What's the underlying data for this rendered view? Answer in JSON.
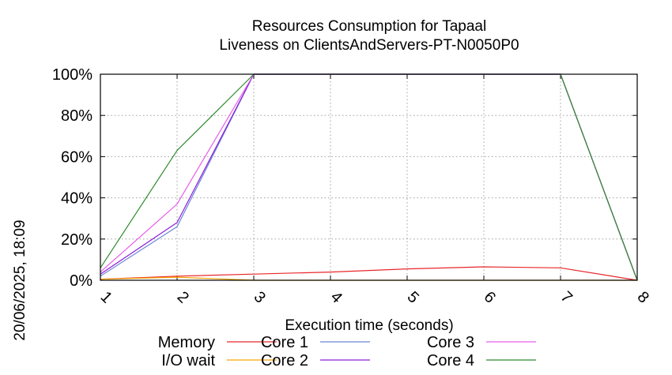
{
  "chart_data": {
    "type": "line",
    "title": "Resources Consumption for Tapaal",
    "subtitle": "Liveness on ClientsAndServers-PT-N0050P0",
    "xlabel": "Execution time (seconds)",
    "ylabel": "",
    "xlim": [
      1,
      8
    ],
    "ylim": [
      0,
      100
    ],
    "x_ticks": [
      "1",
      "2",
      "3",
      "4",
      "5",
      "6",
      "7",
      "8"
    ],
    "y_ticks": [
      "0%",
      "20%",
      "40%",
      "60%",
      "80%",
      "100%"
    ],
    "grid": true,
    "legend_position": "bottom",
    "timestamp": "20/06/2025, 18:09",
    "series": [
      {
        "name": "Memory",
        "color": "#e8272a",
        "x": [
          1,
          2,
          3,
          4,
          5,
          6,
          7,
          8
        ],
        "y": [
          0.5,
          2,
          3,
          4,
          5.5,
          6.5,
          6,
          0
        ]
      },
      {
        "name": "I/O wait",
        "color": "#f5a300",
        "x": [
          1,
          2,
          3,
          4,
          5,
          6,
          7,
          8
        ],
        "y": [
          0.5,
          1.5,
          0,
          0,
          0,
          0,
          0,
          0
        ]
      },
      {
        "name": "Core 1",
        "color": "#6a85d8",
        "x": [
          1,
          2,
          3,
          4,
          5,
          6,
          7,
          8
        ],
        "y": [
          2,
          26,
          100,
          100,
          100,
          100,
          100,
          0
        ]
      },
      {
        "name": "Core 2",
        "color": "#8b1fd6",
        "x": [
          1,
          2,
          3,
          4,
          5,
          6,
          7,
          8
        ],
        "y": [
          3,
          28,
          100,
          100,
          100,
          100,
          100,
          0
        ]
      },
      {
        "name": "Core 3",
        "color": "#e85ee8",
        "x": [
          1,
          2,
          3,
          4,
          5,
          6,
          7,
          8
        ],
        "y": [
          4,
          37,
          100,
          100,
          100,
          100,
          100,
          0
        ]
      },
      {
        "name": "Core 4",
        "color": "#2e8b2e",
        "x": [
          1,
          2,
          3,
          4,
          5,
          6,
          7,
          8
        ],
        "y": [
          6,
          63,
          100,
          100,
          100,
          100,
          100,
          0
        ]
      }
    ]
  }
}
